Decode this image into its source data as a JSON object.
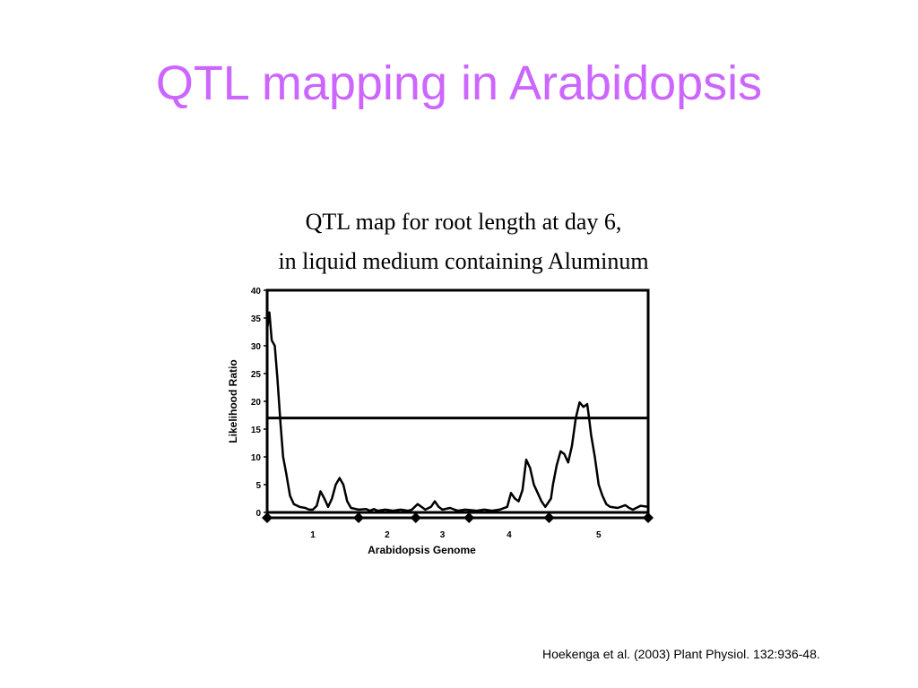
{
  "slide": {
    "title": "QTL mapping in Arabidopsis",
    "caption_line1": "QTL map for root length at day 6,",
    "caption_line2": "in liquid medium containing Aluminum",
    "citation": "Hoekenga et al. (2003) Plant Physiol. 132:936-48."
  },
  "colors": {
    "title": "#cc66ff",
    "plot_line": "#000000"
  },
  "chart_data": {
    "type": "line",
    "title": "",
    "xlabel": "Arabidopsis Genome",
    "ylabel": "Likelihood Ratio",
    "ylim": [
      0,
      40
    ],
    "xlim": [
      0,
      100
    ],
    "yticks": [
      0,
      5,
      10,
      15,
      20,
      25,
      30,
      35,
      40
    ],
    "grid": false,
    "threshold": 17,
    "chromosomes": [
      {
        "label": "1",
        "start": 0,
        "end": 24
      },
      {
        "label": "2",
        "start": 24,
        "end": 39
      },
      {
        "label": "3",
        "start": 39,
        "end": 53
      },
      {
        "label": "4",
        "start": 53,
        "end": 74
      },
      {
        "label": "5",
        "start": 74,
        "end": 100
      }
    ],
    "series": [
      {
        "points": [
          [
            0,
            33
          ],
          [
            0.6,
            36
          ],
          [
            1.2,
            31
          ],
          [
            2.0,
            30
          ],
          [
            2.7,
            24
          ],
          [
            3.5,
            16
          ],
          [
            4.2,
            10
          ],
          [
            5.0,
            7
          ],
          [
            6.0,
            3
          ],
          [
            7.0,
            1.5
          ],
          [
            8.5,
            1
          ],
          [
            10,
            0.8
          ],
          [
            11,
            0.5
          ],
          [
            12,
            0.5
          ],
          [
            13,
            1.2
          ],
          [
            14,
            3.8
          ],
          [
            15,
            2.5
          ],
          [
            16,
            1
          ],
          [
            17,
            2.5
          ],
          [
            18,
            5
          ],
          [
            19,
            6.2
          ],
          [
            20,
            5
          ],
          [
            21,
            2
          ],
          [
            22,
            0.8
          ],
          [
            24,
            0.5
          ],
          [
            26,
            0.6
          ],
          [
            27,
            0.3
          ],
          [
            28,
            0.6
          ],
          [
            29,
            0.3
          ],
          [
            31,
            0.5
          ],
          [
            33,
            0.3
          ],
          [
            35,
            0.5
          ],
          [
            37,
            0.3
          ],
          [
            38,
            0.5
          ],
          [
            39.5,
            1.5
          ],
          [
            40.5,
            1
          ],
          [
            41.5,
            0.5
          ],
          [
            43,
            1
          ],
          [
            44,
            2
          ],
          [
            45,
            1
          ],
          [
            46,
            0.5
          ],
          [
            48,
            0.8
          ],
          [
            50,
            0.3
          ],
          [
            52,
            0.5
          ],
          [
            53.5,
            0.4
          ],
          [
            55,
            0.3
          ],
          [
            57,
            0.5
          ],
          [
            59,
            0.3
          ],
          [
            61,
            0.5
          ],
          [
            63,
            1
          ],
          [
            64,
            3.5
          ],
          [
            65,
            2.5
          ],
          [
            66,
            2
          ],
          [
            67,
            4
          ],
          [
            68,
            9.5
          ],
          [
            69,
            8
          ],
          [
            70,
            5
          ],
          [
            71,
            3.5
          ],
          [
            72,
            2
          ],
          [
            73,
            1
          ],
          [
            74.5,
            2.5
          ],
          [
            75,
            5
          ],
          [
            76,
            8.5
          ],
          [
            77,
            11
          ],
          [
            78,
            10.5
          ],
          [
            79,
            9
          ],
          [
            80,
            12
          ],
          [
            81,
            17
          ],
          [
            82,
            19.8
          ],
          [
            83,
            19
          ],
          [
            84,
            19.5
          ],
          [
            84.5,
            17
          ],
          [
            85,
            14
          ],
          [
            86,
            10
          ],
          [
            87,
            5
          ],
          [
            88,
            3
          ],
          [
            89,
            1.5
          ],
          [
            90,
            1
          ],
          [
            92,
            0.8
          ],
          [
            94,
            1.3
          ],
          [
            95,
            0.8
          ],
          [
            96,
            0.5
          ],
          [
            98,
            1.2
          ],
          [
            100,
            1
          ]
        ]
      }
    ]
  }
}
